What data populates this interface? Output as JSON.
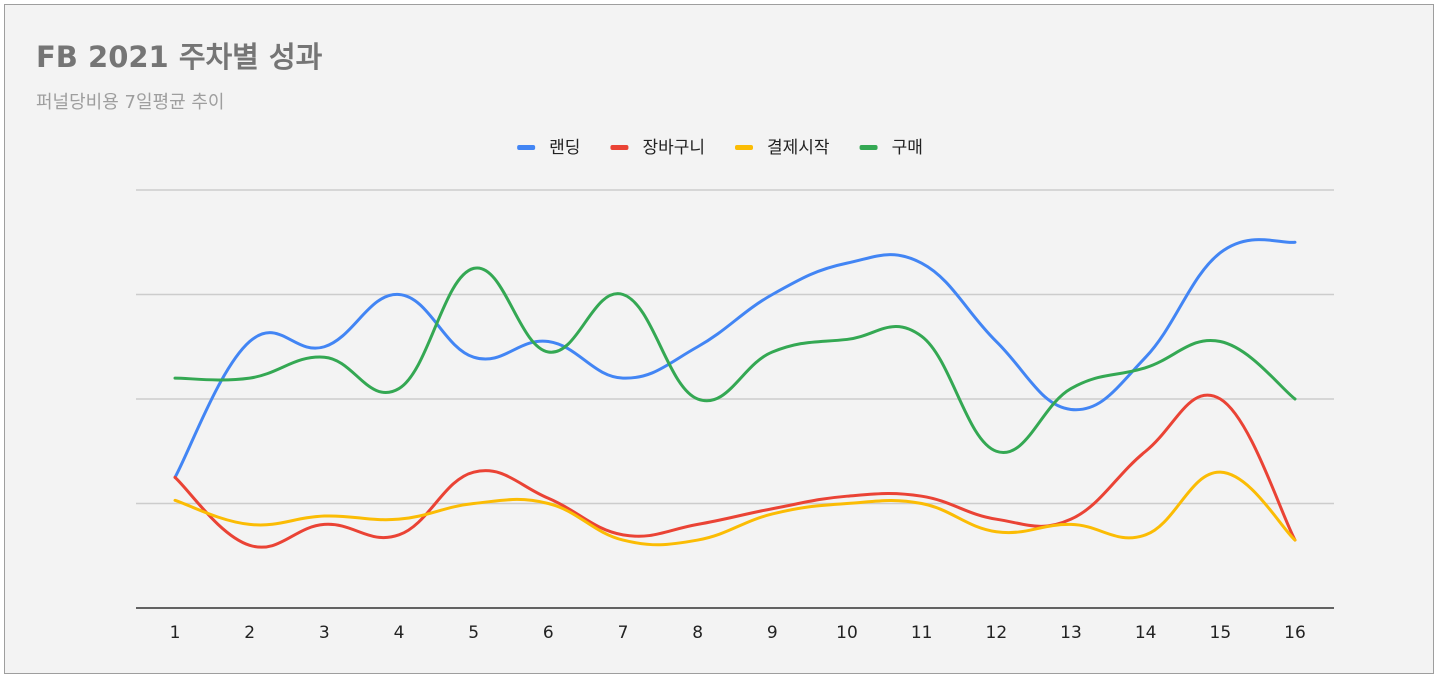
{
  "chart_data": {
    "type": "line",
    "title": "FB 2021 주차별 성과",
    "subtitle": "퍼널당비용 7일평균 추이",
    "xlabel": "",
    "ylabel": "",
    "categories": [
      "1",
      "2",
      "3",
      "4",
      "5",
      "6",
      "7",
      "8",
      "9",
      "10",
      "11",
      "12",
      "13",
      "14",
      "15",
      "16"
    ],
    "ylim": [
      0,
      4
    ],
    "grid": true,
    "legend_position": "top-center",
    "series": [
      {
        "name": "랜딩",
        "color": "#4285f4",
        "values": [
          1.25,
          2.55,
          2.5,
          3.0,
          2.4,
          2.55,
          2.2,
          2.5,
          3.0,
          3.3,
          3.3,
          2.55,
          1.9,
          2.4,
          3.4,
          3.5
        ]
      },
      {
        "name": "장바구니",
        "color": "#ea4335",
        "values": [
          1.25,
          0.6,
          0.8,
          0.7,
          1.3,
          1.05,
          0.7,
          0.8,
          0.95,
          1.07,
          1.07,
          0.85,
          0.85,
          1.5,
          2.0,
          0.65
        ]
      },
      {
        "name": "결제시작",
        "color": "#fbbc04",
        "values": [
          1.03,
          0.8,
          0.88,
          0.85,
          1.0,
          1.0,
          0.65,
          0.65,
          0.9,
          1.0,
          1.0,
          0.73,
          0.8,
          0.7,
          1.3,
          0.65
        ]
      },
      {
        "name": "구매",
        "color": "#34a853",
        "values": [
          2.2,
          2.2,
          2.4,
          2.1,
          3.25,
          2.45,
          3.0,
          2.0,
          2.45,
          2.57,
          2.6,
          1.5,
          2.1,
          2.3,
          2.55,
          2.0
        ]
      }
    ]
  }
}
